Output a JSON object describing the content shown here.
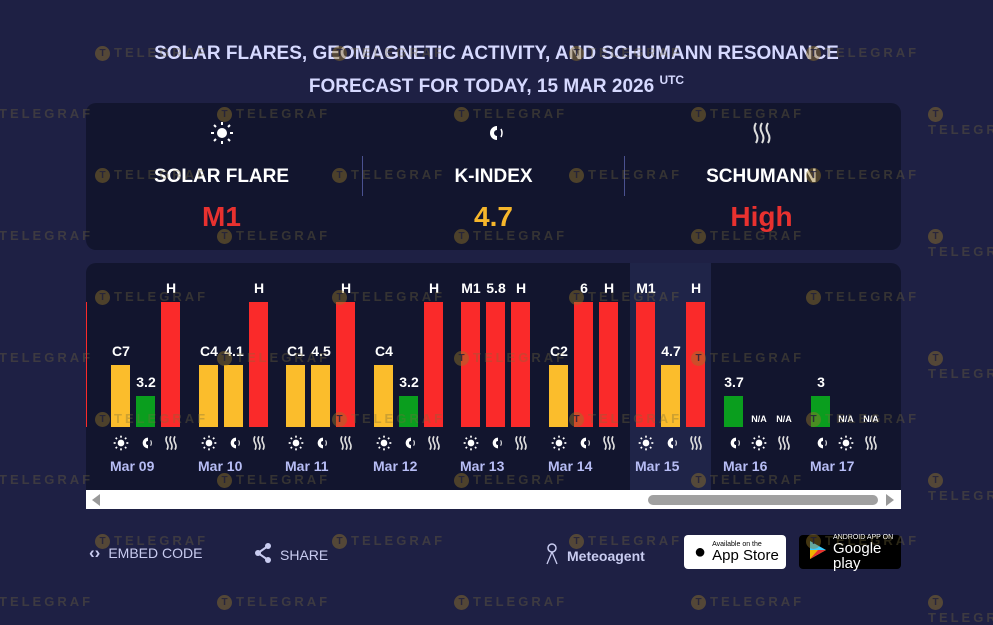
{
  "header": {
    "title_line1": "SOLAR FLARES, GEOMAGNETIC ACTIVITY, AND SCHUMANN RESONANCE",
    "title_line2": "FORECAST FOR TODAY, 15 MAR 2026",
    "title_sup": "UTC"
  },
  "summary": [
    {
      "icon": "sun-icon",
      "label": "SOLAR FLARE",
      "value": "M1",
      "color": "#e8312f"
    },
    {
      "icon": "magnet-icon",
      "label": "K-INDEX",
      "value": "4.7",
      "color": "#f6b62b"
    },
    {
      "icon": "waves-icon",
      "label": "SCHUMANN",
      "value": "High",
      "color": "#e8312f"
    }
  ],
  "colors": {
    "low": "#0a9e1e",
    "moderate": "#fbbd2c",
    "high": "#fa2a2a",
    "highlight": "#1f2448"
  },
  "chart_data": {
    "type": "bar",
    "highlighted_day": "Mar 15",
    "days": [
      {
        "date": "",
        "bars": [
          {
            "kind": "schumann",
            "label": "H",
            "level": 3
          }
        ]
      },
      {
        "date": "Mar 09",
        "bars": [
          {
            "kind": "solar",
            "label": "C7",
            "level": 2
          },
          {
            "kind": "kindex",
            "label": "3.2",
            "level": 1
          },
          {
            "kind": "schumann",
            "label": "H",
            "level": 3
          }
        ]
      },
      {
        "date": "Mar 10",
        "bars": [
          {
            "kind": "solar",
            "label": "C4",
            "level": 2
          },
          {
            "kind": "kindex",
            "label": "4.1",
            "level": 2
          },
          {
            "kind": "schumann",
            "label": "H",
            "level": 3
          }
        ]
      },
      {
        "date": "Mar 11",
        "bars": [
          {
            "kind": "solar",
            "label": "C1",
            "level": 2
          },
          {
            "kind": "kindex",
            "label": "4.5",
            "level": 2
          },
          {
            "kind": "schumann",
            "label": "H",
            "level": 3
          }
        ]
      },
      {
        "date": "Mar 12",
        "bars": [
          {
            "kind": "solar",
            "label": "C4",
            "level": 2
          },
          {
            "kind": "kindex",
            "label": "3.2",
            "level": 1
          },
          {
            "kind": "schumann",
            "label": "H",
            "level": 3
          }
        ]
      },
      {
        "date": "Mar 13",
        "bars": [
          {
            "kind": "solar",
            "label": "M1",
            "level": 3
          },
          {
            "kind": "kindex",
            "label": "5.8",
            "level": 3
          },
          {
            "kind": "schumann",
            "label": "H",
            "level": 3
          }
        ]
      },
      {
        "date": "Mar 14",
        "bars": [
          {
            "kind": "solar",
            "label": "C2",
            "level": 2
          },
          {
            "kind": "kindex",
            "label": "6",
            "level": 3
          },
          {
            "kind": "schumann",
            "label": "H",
            "level": 3
          }
        ]
      },
      {
        "date": "Mar 15",
        "bars": [
          {
            "kind": "solar",
            "label": "M1",
            "level": 3
          },
          {
            "kind": "kindex",
            "label": "4.7",
            "level": 2
          },
          {
            "kind": "schumann",
            "label": "H",
            "level": 3
          }
        ]
      },
      {
        "date": "Mar 16",
        "bars": [
          {
            "kind": "kindex",
            "label": "3.7",
            "level": 1
          },
          {
            "kind": "solar",
            "label": "N/A",
            "level": 0
          },
          {
            "kind": "schumann",
            "label": "N/A",
            "level": 0
          }
        ]
      },
      {
        "date": "Mar 17",
        "bars": [
          {
            "kind": "kindex",
            "label": "3",
            "level": 1
          },
          {
            "kind": "solar",
            "label": "N/A",
            "level": 0
          },
          {
            "kind": "schumann",
            "label": "N/A",
            "level": 0
          }
        ]
      }
    ]
  },
  "footer": {
    "embed": "EMBED CODE",
    "share": "SHARE",
    "brand": "Meteoagent",
    "appstore_small": "Available on the",
    "appstore": "App Store",
    "googleplay_small": "ANDROID APP ON",
    "googleplay": "Google play"
  },
  "watermark": "TELEGRAF"
}
